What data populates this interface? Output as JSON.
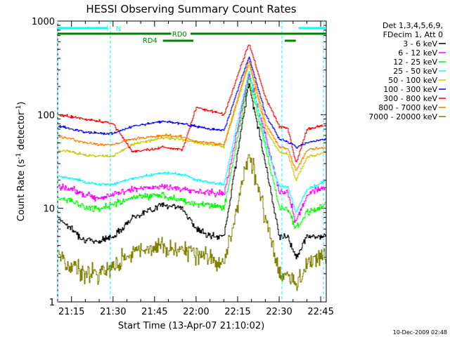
{
  "chart_data": {
    "type": "line",
    "title": "HESSI Observing Summary Count Rates",
    "xlabel": "Start Time (13-Apr-07 21:10:02)",
    "ylabel_main": "Count Rate (s",
    "ylabel_exp1": "-1",
    "ylabel_mid": " detector",
    "ylabel_exp2": "-1",
    "ylabel_end": ")",
    "yscale": "log",
    "ylim": [
      1,
      1000
    ],
    "xlim": [
      "21:10",
      "22:47"
    ],
    "x_ticks": [
      "21:15",
      "21:30",
      "21:45",
      "22:00",
      "22:15",
      "22:30",
      "22:45"
    ],
    "y_tick_labels": [
      {
        "value": 1000,
        "label": "1000"
      },
      {
        "value": 100,
        "label": "100"
      },
      {
        "value": 10,
        "label": "10"
      },
      {
        "value": 1,
        "label": "1"
      }
    ],
    "footer_date": "10-Dec-2009 02:48",
    "legend_header": [
      "Det 1,3,4,5,6,9,",
      "FDecim 1, Att 0"
    ],
    "series": [
      {
        "name": "3 - 6 keV",
        "color": "#000000",
        "values": [
          8,
          6,
          4.5,
          4.5,
          5,
          8,
          11,
          10,
          6,
          5,
          5,
          220,
          30,
          5,
          5,
          3,
          5,
          5,
          5
        ]
      },
      {
        "name": "6 - 12 keV",
        "color": "#ff00ff",
        "values": [
          17,
          16,
          14,
          13,
          14,
          16,
          17,
          16,
          15,
          15,
          14,
          270,
          60,
          15,
          15,
          7,
          14,
          16,
          17
        ]
      },
      {
        "name": "12 - 25 keV",
        "color": "#00ff00",
        "values": [
          13,
          12,
          10,
          10,
          11,
          13,
          14,
          12,
          11,
          11,
          10,
          250,
          45,
          10,
          10,
          6,
          9,
          10,
          11
        ]
      },
      {
        "name": "25 - 50 keV",
        "color": "#00ffff",
        "values": [
          22,
          21,
          19,
          18,
          18,
          21,
          24,
          23,
          20,
          19,
          18,
          300,
          50,
          17,
          17,
          9,
          16,
          18,
          20
        ]
      },
      {
        "name": "50 - 100 keV",
        "color": "#c8c800",
        "values": [
          42,
          40,
          37,
          36,
          36,
          48,
          57,
          54,
          50,
          48,
          46,
          350,
          70,
          40,
          38,
          20,
          35,
          38,
          40
        ]
      },
      {
        "name": "100 - 300 keV",
        "color": "#0000ff",
        "values": [
          75,
          70,
          65,
          63,
          63,
          75,
          85,
          80,
          75,
          70,
          68,
          420,
          100,
          55,
          52,
          45,
          50,
          53,
          55
        ]
      },
      {
        "name": "300 - 800 keV",
        "color": "#ff0000",
        "values": [
          100,
          95,
          90,
          85,
          80,
          40,
          45,
          42,
          120,
          110,
          100,
          580,
          150,
          75,
          72,
          30,
          70,
          75,
          78
        ]
      },
      {
        "name": "800 - 7000 keV",
        "color": "#ff8000",
        "values": [
          58,
          55,
          50,
          48,
          48,
          55,
          60,
          58,
          52,
          50,
          48,
          380,
          80,
          45,
          43,
          25,
          42,
          44,
          45
        ]
      },
      {
        "name": "7000 - 20000 keV",
        "color": "#808000",
        "values": [
          3,
          2.5,
          2,
          2,
          2.5,
          3.5,
          4,
          3.5,
          3,
          3,
          2.5,
          40,
          8,
          2,
          2,
          1.5,
          2.5,
          3,
          3
        ]
      }
    ],
    "x": [
      "21:10",
      "21:15",
      "21:20",
      "21:25",
      "21:30",
      "21:37",
      "21:48",
      "21:55",
      "22:00",
      "22:05",
      "22:10",
      "22:19",
      "22:25",
      "22:30",
      "22:33",
      "22:36",
      "22:40",
      "22:44",
      "22:47"
    ],
    "bars": {
      "night_label": "N",
      "rd0_label": "RD0",
      "rd4_label": "RD4"
    }
  }
}
